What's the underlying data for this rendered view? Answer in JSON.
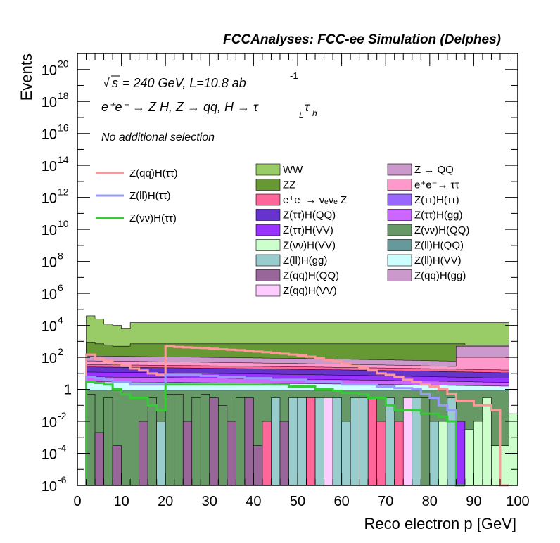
{
  "title": "FCCAnalyses: FCC-ee Simulation (Delphes)",
  "annotations": {
    "energy_prefix": "s",
    "energy": "= 240 GeV, L=10.8 ab",
    "energy_exp": "-1",
    "process": "e⁺e⁻ → Z H, Z → qq, H → τ",
    "process_sub1": "L",
    "process_tau2": "τ",
    "process_sub2": "h",
    "selection": "No additional selection"
  },
  "chart_data": {
    "type": "bar",
    "subtype": "stacked-histogram-with-signal-lines",
    "xlabel": "Reco electron p [GeV]",
    "ylabel": "Events",
    "xlim": [
      0,
      100
    ],
    "ylim": [
      1e-06,
      1e+21
    ],
    "yscale": "log",
    "x_ticks": [
      0,
      10,
      20,
      30,
      40,
      50,
      60,
      70,
      80,
      90,
      100
    ],
    "y_ticks": [
      {
        "value": 1e-06,
        "base": "10",
        "exp": "-6"
      },
      {
        "value": 0.0001,
        "base": "10",
        "exp": "-4"
      },
      {
        "value": 0.01,
        "base": "10",
        "exp": "-2"
      },
      {
        "value": 1,
        "base": "1",
        "exp": ""
      },
      {
        "value": 100.0,
        "base": "10",
        "exp": "2"
      },
      {
        "value": 10000.0,
        "base": "10",
        "exp": "4"
      },
      {
        "value": 1000000.0,
        "base": "10",
        "exp": "6"
      },
      {
        "value": 100000000.0,
        "base": "10",
        "exp": "8"
      },
      {
        "value": 10000000000.0,
        "base": "10",
        "exp": "10"
      },
      {
        "value": 1000000000000.0,
        "base": "10",
        "exp": "12"
      },
      {
        "value": 100000000000000.0,
        "base": "10",
        "exp": "14"
      },
      {
        "value": 1e+16,
        "base": "10",
        "exp": "16"
      },
      {
        "value": 1e+18,
        "base": "10",
        "exp": "18"
      },
      {
        "value": 1e+20,
        "base": "10",
        "exp": "20"
      }
    ],
    "grid": false,
    "legend_placement": "upper half, three columns",
    "stack_top": {
      "bin_edges": [
        2,
        4,
        6,
        8,
        10,
        20,
        100
      ],
      "values": [
        60000,
        30000,
        15000,
        12000,
        8000,
        15000
      ],
      "note": "total stacked background ≈ 1.5e4 flat from 20 to 100 GeV"
    },
    "background_levels": [
      {
        "name": "WW",
        "color": "#99cc66",
        "top": [
          40000,
          25000,
          12000,
          10000,
          6000,
          15000,
          15000,
          15000,
          15000,
          15000,
          15000,
          15000,
          15000,
          15000,
          15000,
          15000,
          15000,
          15000,
          15000,
          15000,
          15000,
          15000,
          15000,
          15000,
          15000,
          15000,
          15000,
          15000,
          15000,
          15000,
          15000,
          15000,
          15000,
          15000,
          15000,
          15000,
          15000,
          15000,
          15000,
          15000,
          15000,
          15000,
          15000,
          15000,
          15000,
          15000,
          15000,
          15000,
          15000
        ]
      },
      {
        "name": "ZZ",
        "color": "#669933",
        "top": [
          900,
          700,
          600,
          500,
          500,
          700,
          700,
          700,
          700,
          700,
          700,
          700,
          700,
          700,
          700,
          700,
          700,
          700,
          700,
          700,
          700,
          700,
          700,
          700,
          700,
          700,
          700,
          700,
          700,
          700,
          700,
          700,
          700,
          700,
          700,
          700,
          700,
          700,
          700,
          700,
          700,
          700,
          700,
          600,
          600,
          600,
          600,
          600,
          600
        ]
      }
    ],
    "series": [
      {
        "name": "WW",
        "color": "#99cc66",
        "kind": "stack"
      },
      {
        "name": "ZZ",
        "color": "#669933",
        "kind": "stack"
      },
      {
        "name": "e⁺e⁻→ νₑνₑ Z",
        "color": "#ff6699",
        "kind": "stack"
      },
      {
        "name": "Z(ττ)H(QQ)",
        "color": "#6633cc",
        "kind": "stack"
      },
      {
        "name": "Z(ττ)H(VV)",
        "color": "#9933ff",
        "kind": "stack"
      },
      {
        "name": "Z(νν)H(VV)",
        "color": "#ccffcc",
        "kind": "stack"
      },
      {
        "name": "Z(ll)H(gg)",
        "color": "#99cccc",
        "kind": "stack"
      },
      {
        "name": "Z(qq)H(QQ)",
        "color": "#996699",
        "kind": "stack"
      },
      {
        "name": "Z(qq)H(VV)",
        "color": "#ffccff",
        "kind": "stack"
      },
      {
        "name": "Z → QQ",
        "color": "#cc99cc",
        "kind": "stack"
      },
      {
        "name": "e⁺e⁻→ ττ",
        "color": "#ff99cc",
        "kind": "stack"
      },
      {
        "name": "Z(ττ)H(ττ)",
        "color": "#9966ff",
        "kind": "stack"
      },
      {
        "name": "Z(ττ)H(gg)",
        "color": "#cc66ff",
        "kind": "stack"
      },
      {
        "name": "Z(νν)H(QQ)",
        "color": "#669966",
        "kind": "stack"
      },
      {
        "name": "Z(ll)H(QQ)",
        "color": "#669999",
        "kind": "stack"
      },
      {
        "name": "Z(ll)H(VV)",
        "color": "#ccffff",
        "kind": "stack"
      },
      {
        "name": "Z(qq)H(gg)",
        "color": "#cc99cc",
        "kind": "stack"
      },
      {
        "name": "Z(qq)H(ττ)",
        "color": "#ff9999",
        "kind": "line",
        "bin_edges": [
          2,
          4,
          6,
          8,
          10,
          12,
          14,
          16,
          18,
          20,
          22,
          24,
          26,
          28,
          30,
          32,
          34,
          36,
          38,
          40,
          42,
          44,
          46,
          48,
          50,
          52,
          54,
          56,
          58,
          60,
          62,
          64,
          66,
          68,
          70,
          72,
          74,
          76,
          78,
          80,
          82,
          84,
          86,
          88,
          90,
          92,
          94,
          96,
          98
        ],
        "values": [
          150,
          80,
          60,
          40,
          30,
          20,
          15,
          10,
          8,
          500,
          450,
          420,
          400,
          380,
          350,
          320,
          300,
          280,
          250,
          230,
          210,
          190,
          170,
          150,
          130,
          110,
          90,
          70,
          55,
          40,
          30,
          22,
          15,
          10,
          8,
          6,
          4,
          3,
          2,
          1.5,
          1,
          0.5,
          0.2,
          0.2,
          0.1,
          0.1,
          0.05,
          1e-06
        ]
      },
      {
        "name": "Z(ll)H(ττ)",
        "color": "#9999ff",
        "kind": "line",
        "bin_edges": [
          2,
          4,
          6,
          8,
          10,
          12,
          14,
          16,
          18,
          20,
          22,
          24,
          26,
          28,
          30,
          32,
          34,
          36,
          38,
          40,
          42,
          44,
          46,
          48,
          50,
          52,
          54,
          56,
          58,
          60,
          62,
          64,
          66,
          68,
          70,
          72,
          74,
          76,
          78,
          80,
          82,
          84,
          86,
          88
        ],
        "values": [
          6,
          5,
          4,
          3,
          3,
          2,
          2,
          2,
          2,
          8,
          8,
          8,
          8,
          7,
          7,
          6,
          6,
          6,
          5,
          5,
          5,
          4,
          4,
          4,
          4,
          3,
          3,
          3,
          3,
          2,
          2,
          2,
          2,
          1.5,
          1.5,
          1.2,
          1.2,
          1,
          0.5,
          0.3,
          0.1,
          0.05,
          1e-06
        ]
      },
      {
        "name": "Z(νν)H(ττ)",
        "color": "#33cc33",
        "kind": "line",
        "bin_edges": [
          2,
          4,
          6,
          8,
          10,
          12,
          14,
          16,
          18,
          20,
          22,
          24,
          26,
          28,
          30,
          32,
          34,
          36,
          38,
          40,
          42,
          44,
          46,
          48,
          50,
          52,
          54,
          56,
          58,
          60,
          62,
          64,
          66,
          68,
          70,
          72,
          74,
          76,
          78,
          80,
          82,
          84,
          86
        ],
        "values": [
          3,
          2.5,
          2,
          1,
          0.5,
          0.3,
          0.3,
          0.1,
          0.05,
          2,
          2,
          2,
          2,
          2,
          2,
          2,
          2,
          2,
          2,
          2,
          2,
          2,
          2,
          1.5,
          1.5,
          1.5,
          1,
          1,
          0.8,
          0.6,
          0.6,
          0.5,
          0.3,
          0.3,
          0.1,
          0.05,
          0.05,
          0.05,
          0.03,
          0.03,
          0.02,
          0.01,
          1e-06
        ]
      }
    ]
  }
}
